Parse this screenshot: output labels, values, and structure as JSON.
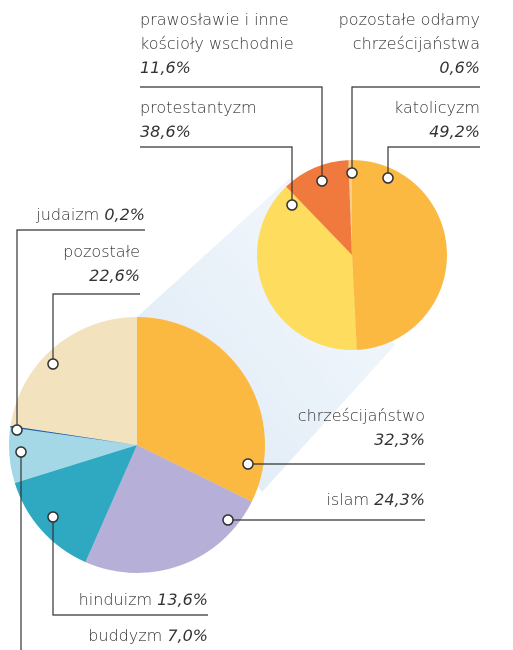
{
  "chart_data": [
    {
      "type": "pie",
      "categories": [
        "chrześcijaństwo",
        "islam",
        "hinduizm",
        "buddyzm",
        "judaizm",
        "pozostałe"
      ],
      "values": [
        32.3,
        24.3,
        13.6,
        7.0,
        0.2,
        22.6
      ],
      "value_labels": [
        "32,3%",
        "24,3%",
        "13,6%",
        "7,0%",
        "0,2%",
        "22,6%"
      ],
      "colors": [
        "#fbb942",
        "#b6b0d8",
        "#2fa8c2",
        "#a4d8e6",
        "#1f5fa8",
        "#f2e3be"
      ]
    },
    {
      "type": "pie",
      "categories": [
        "katolicyzm",
        "protestantyzm",
        "prawosławie i inne\nkościoły wschodnie",
        "pozostałe odłamy\nchrześcijaństwa"
      ],
      "values": [
        49.2,
        38.6,
        11.6,
        0.6
      ],
      "value_labels": [
        "49,2%",
        "38,6%",
        "11,6%",
        "0,6%"
      ],
      "colors": [
        "#fbb942",
        "#fddc5e",
        "#f07a3e",
        "#f7cd8e"
      ]
    }
  ]
}
